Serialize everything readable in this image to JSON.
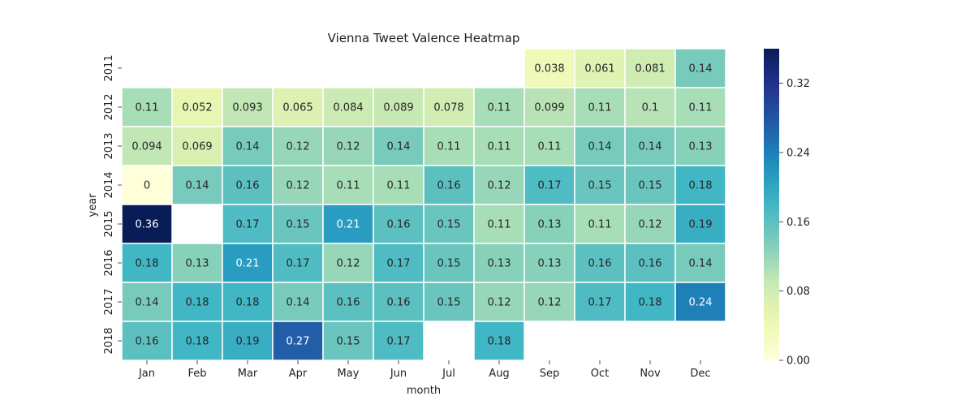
{
  "chart_data": {
    "type": "heatmap",
    "title": "Vienna Tweet Valence Heatmap",
    "xlabel": "month",
    "ylabel": "year",
    "x_categories": [
      "Jan",
      "Feb",
      "Mar",
      "Apr",
      "May",
      "Jun",
      "Jul",
      "Aug",
      "Sep",
      "Oct",
      "Nov",
      "Dec"
    ],
    "y_categories": [
      "2011",
      "2012",
      "2013",
      "2014",
      "2015",
      "2016",
      "2017",
      "2018"
    ],
    "values": [
      [
        null,
        null,
        null,
        null,
        null,
        null,
        null,
        null,
        0.038,
        0.061,
        0.081,
        0.14
      ],
      [
        0.11,
        0.052,
        0.093,
        0.065,
        0.084,
        0.089,
        0.078,
        0.11,
        0.099,
        0.11,
        0.1,
        0.11
      ],
      [
        0.094,
        0.069,
        0.14,
        0.12,
        0.12,
        0.14,
        0.11,
        0.11,
        0.11,
        0.14,
        0.14,
        0.13
      ],
      [
        0,
        0.14,
        0.16,
        0.12,
        0.11,
        0.11,
        0.16,
        0.12,
        0.17,
        0.15,
        0.15,
        0.18
      ],
      [
        0.36,
        null,
        0.17,
        0.15,
        0.21,
        0.16,
        0.15,
        0.11,
        0.13,
        0.11,
        0.12,
        0.19
      ],
      [
        0.18,
        0.13,
        0.21,
        0.17,
        0.12,
        0.17,
        0.15,
        0.13,
        0.13,
        0.16,
        0.16,
        0.14
      ],
      [
        0.14,
        0.18,
        0.18,
        0.14,
        0.16,
        0.16,
        0.15,
        0.12,
        0.12,
        0.17,
        0.18,
        0.24
      ],
      [
        0.16,
        0.18,
        0.19,
        0.27,
        0.15,
        0.17,
        null,
        0.18,
        null,
        null,
        null,
        null
      ]
    ],
    "colormap": "YlGnBu",
    "vmin": 0,
    "vmax": 0.36,
    "colorbar_ticks": [
      "0.00",
      "0.08",
      "0.16",
      "0.24",
      "0.32"
    ],
    "annotations": true,
    "missing_cells": "blank",
    "cell_border_color": "#ffffff"
  }
}
